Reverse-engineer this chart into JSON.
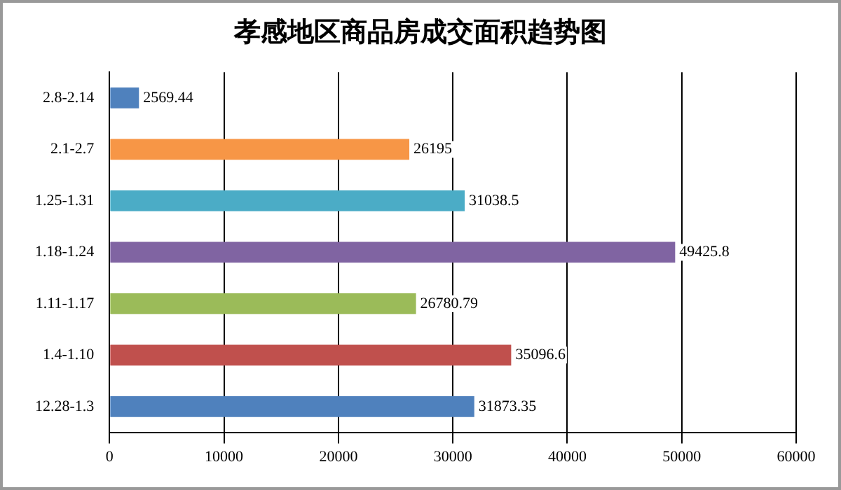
{
  "chart_data": {
    "type": "bar",
    "orientation": "horizontal",
    "title": "孝感地区商品房成交面积趋势图",
    "categories": [
      "2.8-2.14",
      "2.1-2.7",
      "1.25-1.31",
      "1.18-1.24",
      "1.11-1.17",
      "1.4-1.10",
      "12.28-1.3"
    ],
    "values": [
      2569.44,
      26195,
      31038.5,
      49425.8,
      26780.79,
      35096.6,
      31873.35
    ],
    "colors": [
      "#4f81bd",
      "#f79646",
      "#4bacc6",
      "#8064a2",
      "#9bbb59",
      "#c0504d",
      "#4f81bd"
    ],
    "xlim": [
      0,
      60000
    ],
    "xticks": [
      0,
      10000,
      20000,
      30000,
      40000,
      50000,
      60000
    ],
    "grid": "x",
    "data_labels": true
  }
}
